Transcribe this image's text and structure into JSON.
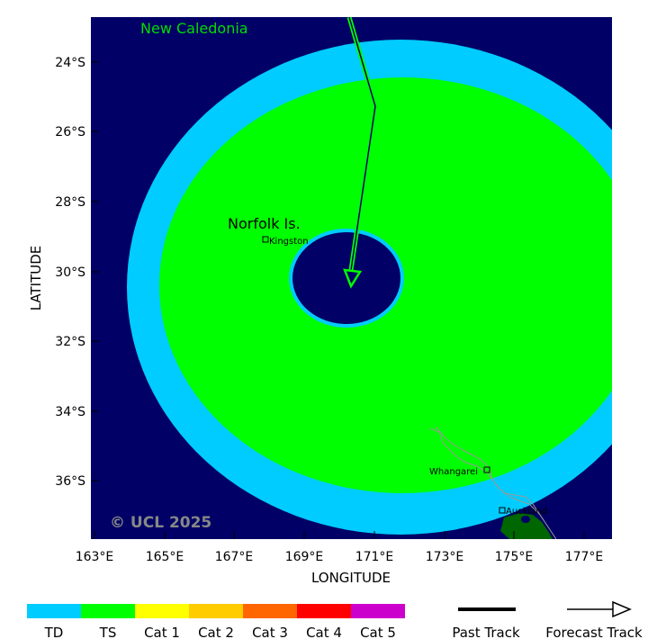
{
  "map": {
    "region_labels": {
      "new_caledonia": "New Caledonia",
      "norfolk": "Norfolk Is."
    },
    "cities": {
      "kingston": "Kingston",
      "whangarei": "Whangarei",
      "auckland": "Auckland"
    },
    "copyright": "© UCL 2025",
    "xlabel": "LONGITUDE",
    "ylabel": "LATITUDE",
    "lat_ticks": [
      "24°S",
      "26°S",
      "28°S",
      "30°S",
      "32°S",
      "34°S",
      "36°S"
    ],
    "lon_ticks": [
      "163°E",
      "165°E",
      "167°E",
      "169°E",
      "171°E",
      "173°E",
      "175°E",
      "177°E"
    ],
    "colors": {
      "ocean": "#000066",
      "td": "#00ccff",
      "ts": "#00ff00",
      "land": "#006600",
      "track": "#00ff00",
      "region_text": "#00dd00"
    }
  },
  "legend": {
    "categories": [
      {
        "label": "TD",
        "color": "#00ccff"
      },
      {
        "label": "TS",
        "color": "#00ff00"
      },
      {
        "label": "Cat 1",
        "color": "#ffff00"
      },
      {
        "label": "Cat 2",
        "color": "#ffcc00"
      },
      {
        "label": "Cat 3",
        "color": "#ff6600"
      },
      {
        "label": "Cat 4",
        "color": "#ff0000"
      },
      {
        "label": "Cat 5",
        "color": "#cc00cc"
      }
    ],
    "past_track_label": "Past Track",
    "forecast_track_label": "Forecast Track"
  }
}
